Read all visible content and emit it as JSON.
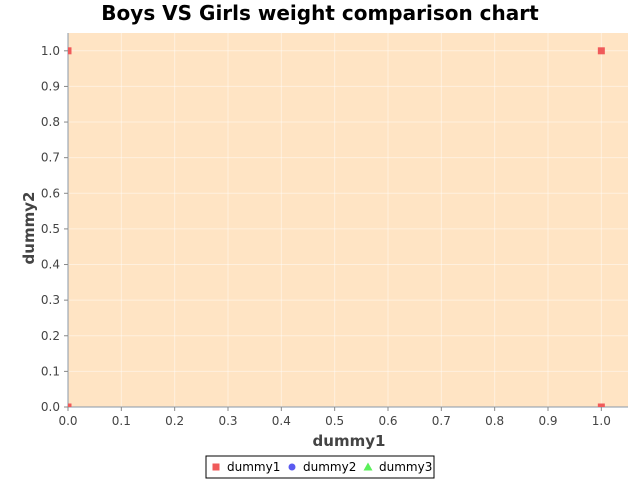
{
  "chart_data": {
    "type": "scatter",
    "title": "Boys VS Girls weight comparison chart",
    "xlabel": "dummy1",
    "ylabel": "dummy2",
    "xlim": [
      0.0,
      1.05
    ],
    "ylim": [
      0.0,
      1.05
    ],
    "x_ticks": [
      "0.0",
      "0.1",
      "0.2",
      "0.3",
      "0.4",
      "0.5",
      "0.6",
      "0.7",
      "0.8",
      "0.9",
      "1.0"
    ],
    "y_ticks": [
      "0.0",
      "0.1",
      "0.2",
      "0.3",
      "0.4",
      "0.5",
      "0.6",
      "0.7",
      "0.8",
      "0.9",
      "1.0"
    ],
    "grid": true,
    "plot_background": "#ffe4c4",
    "legend_position": "bottom",
    "series": [
      {
        "name": "dummy1",
        "color": "#f05a5a",
        "marker": "square",
        "points": [
          [
            0.0,
            0.0
          ],
          [
            0.0,
            1.0
          ],
          [
            1.0,
            0.0
          ],
          [
            1.0,
            1.0
          ]
        ]
      },
      {
        "name": "dummy2",
        "color": "#5a5af0",
        "marker": "circle",
        "points": []
      },
      {
        "name": "dummy3",
        "color": "#5af05a",
        "marker": "triangle",
        "points": []
      }
    ]
  }
}
